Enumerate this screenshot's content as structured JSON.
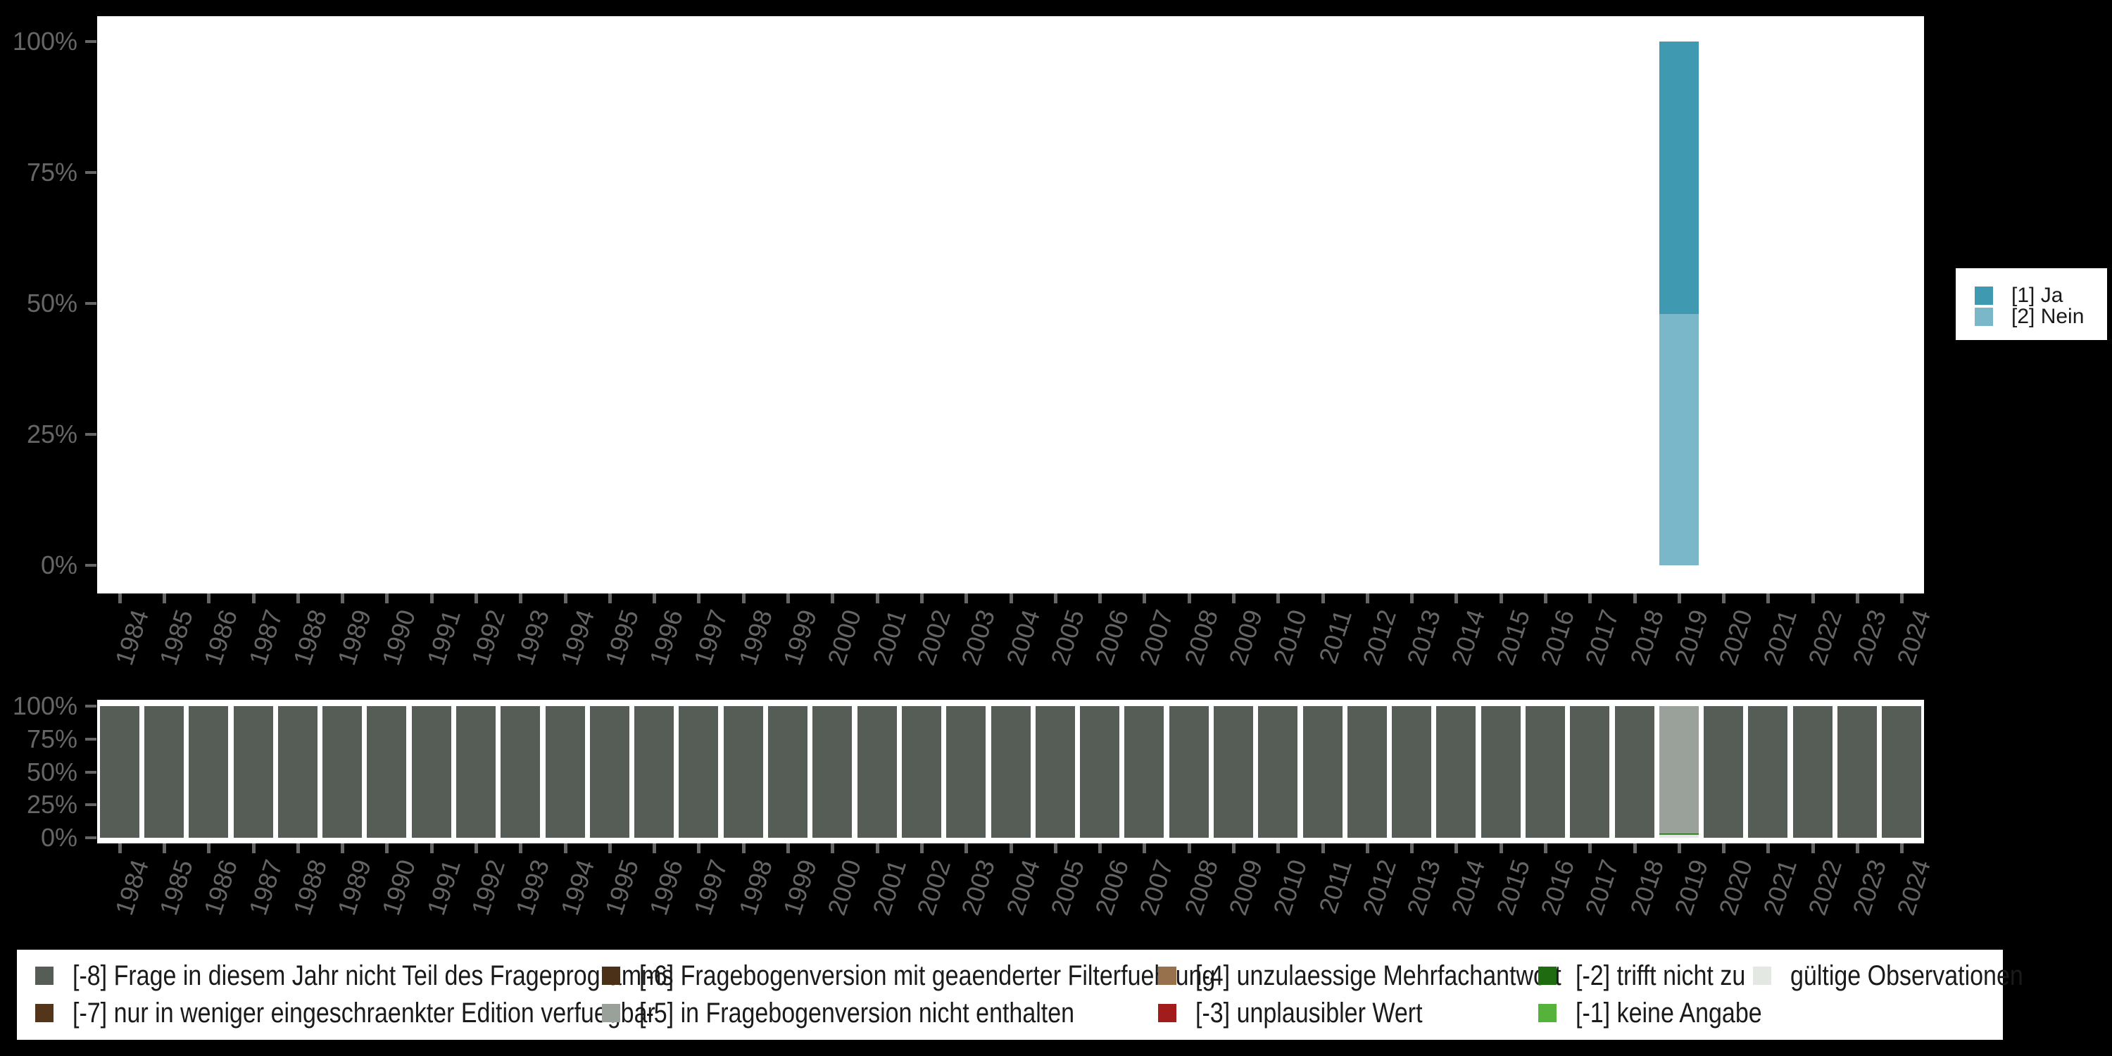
{
  "colors": {
    "background": "#000000",
    "panel": "#FFFFFF",
    "axis_text": "#666666",
    "legend_box": "#FFFFFF",
    "legend_text": "#1A1A1A"
  },
  "percent_ticks": [
    "100%",
    "75%",
    "50%",
    "25%",
    "0%"
  ],
  "years": [
    "1984",
    "1985",
    "1986",
    "1987",
    "1988",
    "1989",
    "1990",
    "1991",
    "1992",
    "1993",
    "1994",
    "1995",
    "1996",
    "1997",
    "1998",
    "1999",
    "2000",
    "2001",
    "2002",
    "2003",
    "2004",
    "2005",
    "2006",
    "2007",
    "2008",
    "2009",
    "2010",
    "2011",
    "2012",
    "2013",
    "2014",
    "2015",
    "2016",
    "2017",
    "2018",
    "2019",
    "2020",
    "2021",
    "2022",
    "2023",
    "2024"
  ],
  "legend_right": {
    "items": [
      {
        "label": "[1] Ja",
        "color": "#3E99B1"
      },
      {
        "label": "[2] Nein",
        "color": "#7AB7C9"
      }
    ]
  },
  "legend_bottom": {
    "items": [
      {
        "label": "[-8] Frage in diesem Jahr nicht Teil des Frageprogramms",
        "color": "#565D56"
      },
      {
        "label": "[-7] nur in weniger eingeschraenkter Edition verfuegbar",
        "color": "#533619"
      },
      {
        "label": "[-6] Fragebogenversion mit geaenderter Filterfuehrung",
        "color": "#4A3118"
      },
      {
        "label": "[-5] in Fragebogenversion nicht enthalten",
        "color": "#9AA09A"
      },
      {
        "label": "[-4] unzulaessige Mehrfachantwort",
        "color": "#96714B"
      },
      {
        "label": "[-3] unplausibler Wert",
        "color": "#A21C1C"
      },
      {
        "label": "[-2] trifft nicht zu",
        "color": "#1E6B10"
      },
      {
        "label": "[-1] keine Angabe",
        "color": "#55B33B"
      },
      {
        "label": "gültige Observationen",
        "color": "#E4E8E3"
      }
    ]
  },
  "chart_data": [
    {
      "type": "bar",
      "stacked": true,
      "title": "",
      "xlabel": "",
      "ylabel": "",
      "ylim": [
        0,
        100
      ],
      "grid": false,
      "legend_position": "right",
      "yticks": [
        "0%",
        "25%",
        "50%",
        "75%",
        "100%"
      ],
      "categories": [
        "1984",
        "1985",
        "1986",
        "1987",
        "1988",
        "1989",
        "1990",
        "1991",
        "1992",
        "1993",
        "1994",
        "1995",
        "1996",
        "1997",
        "1998",
        "1999",
        "2000",
        "2001",
        "2002",
        "2003",
        "2004",
        "2005",
        "2006",
        "2007",
        "2008",
        "2009",
        "2010",
        "2011",
        "2012",
        "2013",
        "2014",
        "2015",
        "2016",
        "2017",
        "2018",
        "2019",
        "2020",
        "2021",
        "2022",
        "2023",
        "2024"
      ],
      "series": [
        {
          "name": "[1] Ja",
          "color": "#3E99B1",
          "values": [
            0,
            0,
            0,
            0,
            0,
            0,
            0,
            0,
            0,
            0,
            0,
            0,
            0,
            0,
            0,
            0,
            0,
            0,
            0,
            0,
            0,
            0,
            0,
            0,
            0,
            0,
            0,
            0,
            0,
            0,
            0,
            0,
            0,
            0,
            0,
            52,
            0,
            0,
            0,
            0,
            0
          ]
        },
        {
          "name": "[2] Nein",
          "color": "#7AB7C9",
          "values": [
            0,
            0,
            0,
            0,
            0,
            0,
            0,
            0,
            0,
            0,
            0,
            0,
            0,
            0,
            0,
            0,
            0,
            0,
            0,
            0,
            0,
            0,
            0,
            0,
            0,
            0,
            0,
            0,
            0,
            0,
            0,
            0,
            0,
            0,
            0,
            48,
            0,
            0,
            0,
            0,
            0
          ]
        }
      ]
    },
    {
      "type": "bar",
      "stacked": true,
      "title": "",
      "xlabel": "",
      "ylabel": "",
      "ylim": [
        0,
        100
      ],
      "grid": false,
      "legend_position": "bottom",
      "yticks": [
        "0%",
        "25%",
        "50%",
        "75%",
        "100%"
      ],
      "categories": [
        "1984",
        "1985",
        "1986",
        "1987",
        "1988",
        "1989",
        "1990",
        "1991",
        "1992",
        "1993",
        "1994",
        "1995",
        "1996",
        "1997",
        "1998",
        "1999",
        "2000",
        "2001",
        "2002",
        "2003",
        "2004",
        "2005",
        "2006",
        "2007",
        "2008",
        "2009",
        "2010",
        "2011",
        "2012",
        "2013",
        "2014",
        "2015",
        "2016",
        "2017",
        "2018",
        "2019",
        "2020",
        "2021",
        "2022",
        "2023",
        "2024"
      ],
      "series": [
        {
          "name": "[-8] Frage in diesem Jahr nicht Teil des Frageprogramms",
          "color": "#565D56",
          "values": [
            100,
            100,
            100,
            100,
            100,
            100,
            100,
            100,
            100,
            100,
            100,
            100,
            100,
            100,
            100,
            100,
            100,
            100,
            100,
            100,
            100,
            100,
            100,
            100,
            100,
            100,
            100,
            100,
            100,
            100,
            100,
            100,
            100,
            100,
            100,
            0,
            100,
            100,
            100,
            100,
            100
          ]
        },
        {
          "name": "[-5] in Fragebogenversion nicht enthalten",
          "color": "#9AA09A",
          "values": [
            0,
            0,
            0,
            0,
            0,
            0,
            0,
            0,
            0,
            0,
            0,
            0,
            0,
            0,
            0,
            0,
            0,
            0,
            0,
            0,
            0,
            0,
            0,
            0,
            0,
            0,
            0,
            0,
            0,
            0,
            0,
            0,
            0,
            0,
            0,
            97,
            0,
            0,
            0,
            0,
            0
          ]
        },
        {
          "name": "[-2] trifft nicht zu",
          "color": "#1E6B10",
          "values": [
            0,
            0,
            0,
            0,
            0,
            0,
            0,
            0,
            0,
            0,
            0,
            0,
            0,
            0,
            0,
            0,
            0,
            0,
            0,
            0,
            0,
            0,
            0,
            0,
            0,
            0,
            0,
            0,
            0,
            0,
            0,
            0,
            0,
            0,
            0,
            0.5,
            0,
            0,
            0,
            0,
            0
          ]
        },
        {
          "name": "[-1] keine Angabe",
          "color": "#55B33B",
          "values": [
            0,
            0,
            0,
            0,
            0,
            0,
            0,
            0,
            0,
            0,
            0,
            0,
            0,
            0,
            0,
            0,
            0,
            0,
            0,
            0,
            0,
            0,
            0,
            0,
            0,
            0,
            0,
            0,
            0,
            0,
            0,
            0,
            0,
            0,
            0,
            0.5,
            0,
            0,
            0,
            0,
            0
          ]
        },
        {
          "name": "gültige Observationen",
          "color": "#E4E8E3",
          "values": [
            0,
            0,
            0,
            0,
            0,
            0,
            0,
            0,
            0,
            0,
            0,
            0,
            0,
            0,
            0,
            0,
            0,
            0,
            0,
            0,
            0,
            0,
            0,
            0,
            0,
            0,
            0,
            0,
            0,
            0,
            0,
            0,
            0,
            0,
            0,
            2,
            0,
            0,
            0,
            0,
            0
          ]
        }
      ]
    }
  ]
}
